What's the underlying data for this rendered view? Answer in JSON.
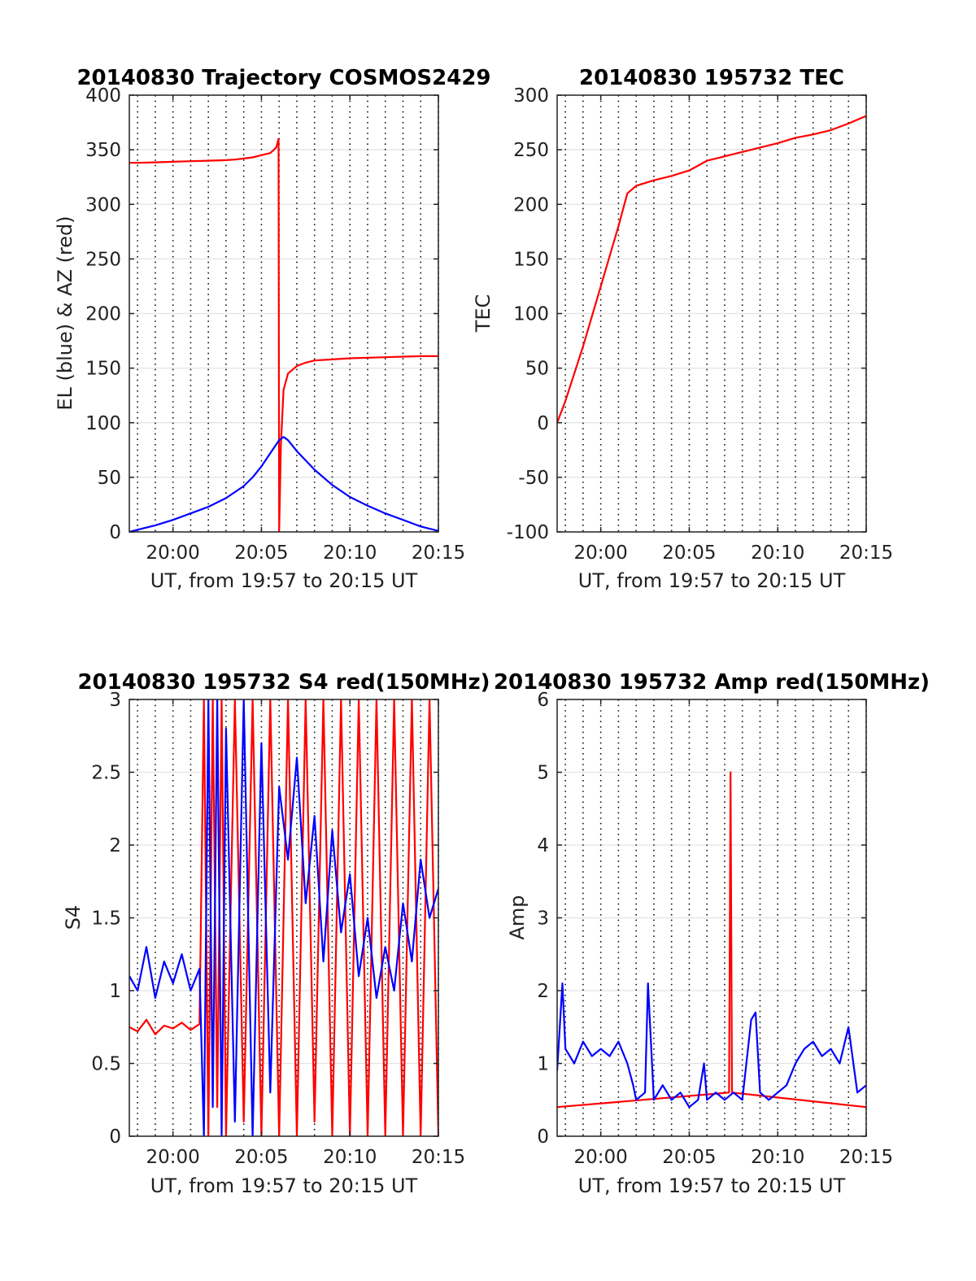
{
  "chart_data": [
    {
      "id": "trajectory",
      "type": "line",
      "title": "20140830 Trajectory COSMOS2429",
      "xlabel": "UT, from 19:57 to 20:15 UT",
      "ylabel": "EL (blue) & AZ (red)",
      "xlim": [
        "19:57:32",
        "20:15:00"
      ],
      "ylim": [
        0,
        400
      ],
      "xticks": [
        "20:00",
        "20:05",
        "20:10",
        "20:15"
      ],
      "yticks": [
        "0",
        "50",
        "100",
        "150",
        "200",
        "250",
        "300",
        "350",
        "400"
      ],
      "grid": true,
      "series": [
        {
          "color": "#ff0000",
          "x": [
            "19:57:32",
            "19:58:00",
            "19:59:00",
            "20:00:00",
            "20:01:00",
            "20:02:00",
            "20:03:00",
            "20:03:30",
            "20:04:00",
            "20:04:30",
            "20:05:00",
            "20:05:30",
            "20:05:50",
            "20:05:58",
            "20:06:00",
            "20:06:06",
            "20:06:15",
            "20:06:30",
            "20:07:00",
            "20:07:30",
            "20:08:00",
            "20:09:00",
            "20:10:00",
            "20:12:00",
            "20:14:00",
            "20:15:00"
          ],
          "y": [
            338,
            338,
            338.5,
            339,
            339.5,
            340,
            340.5,
            341,
            342,
            343,
            345,
            347,
            352,
            360,
            0,
            80,
            130,
            145,
            152,
            155,
            157,
            158,
            159,
            160,
            161,
            161
          ]
        },
        {
          "color": "#0000ff",
          "x": [
            "19:57:32",
            "19:58:00",
            "19:59:00",
            "20:00:00",
            "20:01:00",
            "20:02:00",
            "20:03:00",
            "20:04:00",
            "20:04:30",
            "20:05:00",
            "20:05:30",
            "20:06:00",
            "20:06:15",
            "20:06:30",
            "20:07:00",
            "20:08:00",
            "20:09:00",
            "20:10:00",
            "20:11:00",
            "20:12:00",
            "20:13:00",
            "20:14:00",
            "20:15:00"
          ],
          "y": [
            0,
            2,
            6,
            11,
            17,
            23,
            31,
            42,
            50,
            60,
            72,
            84,
            87,
            84,
            74,
            57,
            43,
            32,
            24,
            17,
            11,
            5,
            1
          ]
        }
      ]
    },
    {
      "id": "tec",
      "type": "line",
      "title": "20140830 195732 TEC",
      "xlabel": "UT, from 19:57 to 20:15 UT",
      "ylabel": "TEC",
      "xlim": [
        "19:57:32",
        "20:15:00"
      ],
      "ylim": [
        -100,
        300
      ],
      "xticks": [
        "20:00",
        "20:05",
        "20:10",
        "20:15"
      ],
      "yticks": [
        "-100",
        "-50",
        "0",
        "50",
        "100",
        "150",
        "200",
        "250",
        "300"
      ],
      "grid": true,
      "series": [
        {
          "color": "#ff0000",
          "x": [
            "19:57:32",
            "19:58:00",
            "19:59:00",
            "20:00:00",
            "20:01:00",
            "20:01:30",
            "20:02:00",
            "20:03:00",
            "20:04:00",
            "20:05:00",
            "20:06:00",
            "20:07:00",
            "20:08:00",
            "20:09:00",
            "20:10:00",
            "20:11:00",
            "20:12:00",
            "20:13:00",
            "20:14:00",
            "20:15:00"
          ],
          "y": [
            0,
            20,
            70,
            125,
            180,
            210,
            217,
            222,
            226,
            231,
            240,
            244,
            248,
            252,
            256,
            261,
            264,
            268,
            274,
            281
          ]
        }
      ]
    },
    {
      "id": "s4",
      "type": "line",
      "title": "20140830 195732 S4 red(150MHz)",
      "xlabel": "UT, from 19:57 to 20:15 UT",
      "ylabel": "S4",
      "xlim": [
        "19:57:32",
        "20:15:00"
      ],
      "ylim": [
        0,
        3
      ],
      "xticks": [
        "20:00",
        "20:05",
        "20:10",
        "20:15"
      ],
      "yticks": [
        "0",
        "0.5",
        "1",
        "1.5",
        "2",
        "2.5",
        "3"
      ],
      "grid": true,
      "series": [
        {
          "color": "#ff0000",
          "x": [
            "19:57:32",
            "19:58:00",
            "19:58:30",
            "19:59:00",
            "19:59:30",
            "20:00:00",
            "20:00:30",
            "20:01:00",
            "20:01:30",
            "20:01:45",
            "20:02:00",
            "20:02:15",
            "20:02:30",
            "20:02:45",
            "20:03:00",
            "20:03:30",
            "20:04:00",
            "20:04:30",
            "20:05:00",
            "20:05:30",
            "20:06:00",
            "20:06:30",
            "20:07:00",
            "20:07:30",
            "20:08:00",
            "20:08:30",
            "20:09:00",
            "20:09:30",
            "20:10:00",
            "20:10:30",
            "20:11:00",
            "20:11:30",
            "20:12:00",
            "20:12:30",
            "20:13:00",
            "20:13:30",
            "20:14:00",
            "20:14:30",
            "20:15:00"
          ],
          "y": [
            0.75,
            0.72,
            0.8,
            0.7,
            0.76,
            0.74,
            0.78,
            0.73,
            0.77,
            3,
            0,
            3,
            0.2,
            3,
            0,
            3,
            0.1,
            3,
            0,
            3,
            0,
            3,
            0,
            3,
            0.1,
            3,
            0,
            3,
            0,
            3,
            0,
            3,
            0,
            3,
            0,
            3,
            0,
            3,
            0
          ]
        },
        {
          "color": "#0000ff",
          "x": [
            "19:57:32",
            "19:58:00",
            "19:58:30",
            "19:59:00",
            "19:59:30",
            "20:00:00",
            "20:00:30",
            "20:01:00",
            "20:01:30",
            "20:01:45",
            "20:02:00",
            "20:02:15",
            "20:02:30",
            "20:02:45",
            "20:03:00",
            "20:03:30",
            "20:04:00",
            "20:04:30",
            "20:05:00",
            "20:05:30",
            "20:06:00",
            "20:06:30",
            "20:07:00",
            "20:07:30",
            "20:08:00",
            "20:08:30",
            "20:09:00",
            "20:09:30",
            "20:10:00",
            "20:10:30",
            "20:11:00",
            "20:11:30",
            "20:12:00",
            "20:12:30",
            "20:13:00",
            "20:13:30",
            "20:14:00",
            "20:14:30",
            "20:15:00"
          ],
          "y": [
            1.1,
            1.0,
            1.3,
            0.95,
            1.2,
            1.05,
            1.25,
            1.0,
            1.15,
            0,
            3,
            0.2,
            3,
            0,
            2.8,
            0.1,
            3,
            0,
            2.7,
            0.3,
            2.4,
            1.9,
            2.6,
            1.6,
            2.2,
            1.2,
            2.1,
            1.4,
            1.8,
            1.1,
            1.5,
            0.95,
            1.3,
            1.0,
            1.6,
            1.2,
            1.9,
            1.5,
            1.7
          ]
        }
      ]
    },
    {
      "id": "amp",
      "type": "line",
      "title": "20140830 195732 Amp red(150MHz)",
      "xlabel": "UT, from 19:57 to 20:15 UT",
      "ylabel": "Amp",
      "xlim": [
        "19:57:32",
        "20:15:00"
      ],
      "ylim": [
        0,
        6
      ],
      "xticks": [
        "20:00",
        "20:05",
        "20:10",
        "20:15"
      ],
      "yticks": [
        "0",
        "1",
        "2",
        "3",
        "4",
        "5",
        "6"
      ],
      "grid": true,
      "series": [
        {
          "color": "#ff0000",
          "x": [
            "19:57:32",
            "20:07:15",
            "20:07:20",
            "20:07:25",
            "20:15:00"
          ],
          "y": [
            0.4,
            0.6,
            5.0,
            0.6,
            0.4
          ]
        },
        {
          "color": "#0000ff",
          "x": [
            "19:57:32",
            "19:57:50",
            "19:58:00",
            "19:58:30",
            "19:59:00",
            "19:59:30",
            "20:00:00",
            "20:00:30",
            "20:01:00",
            "20:01:30",
            "20:01:50",
            "20:02:00",
            "20:02:30",
            "20:02:40",
            "20:03:00",
            "20:03:30",
            "20:04:00",
            "20:04:30",
            "20:05:00",
            "20:05:30",
            "20:05:50",
            "20:06:00",
            "20:06:30",
            "20:07:00",
            "20:07:30",
            "20:08:00",
            "20:08:30",
            "20:08:45",
            "20:09:00",
            "20:09:30",
            "20:10:00",
            "20:10:30",
            "20:11:00",
            "20:11:30",
            "20:12:00",
            "20:12:30",
            "20:13:00",
            "20:13:30",
            "20:14:00",
            "20:14:30",
            "20:15:00"
          ],
          "y": [
            0.9,
            2.1,
            1.2,
            1.0,
            1.3,
            1.1,
            1.2,
            1.1,
            1.3,
            1.0,
            0.7,
            0.5,
            0.6,
            2.1,
            0.5,
            0.7,
            0.5,
            0.6,
            0.4,
            0.5,
            1.0,
            0.5,
            0.6,
            0.5,
            0.6,
            0.5,
            1.6,
            1.7,
            0.6,
            0.5,
            0.6,
            0.7,
            1.0,
            1.2,
            1.3,
            1.1,
            1.2,
            1.0,
            1.5,
            0.6,
            0.7
          ]
        }
      ]
    }
  ]
}
